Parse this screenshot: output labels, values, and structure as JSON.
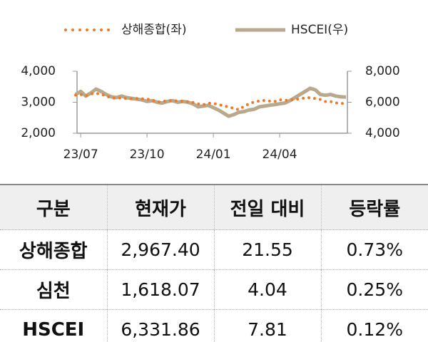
{
  "chart_data": {
    "type": "line",
    "categories": [
      null,
      "23/07",
      null,
      null,
      null,
      null,
      null,
      null,
      null,
      null,
      null,
      null,
      null,
      null,
      "23/10",
      null,
      null,
      null,
      null,
      null,
      null,
      null,
      null,
      null,
      null,
      null,
      null,
      "24/01",
      null,
      null,
      null,
      null,
      null,
      null,
      null,
      null,
      null,
      null,
      null,
      null,
      "24/04",
      null,
      null,
      null,
      null,
      null,
      null,
      null,
      null,
      null,
      null,
      null,
      null,
      null
    ],
    "series": [
      {
        "name": "상해종합(좌)",
        "color": "#ec7a2a",
        "style": "dotted",
        "axis": "y",
        "values": [
          3230,
          3250,
          3200,
          3270,
          3290,
          3260,
          3200,
          3140,
          3130,
          3140,
          3120,
          3110,
          3120,
          3110,
          3100,
          3080,
          3000,
          3020,
          3050,
          3060,
          3040,
          3030,
          3020,
          2990,
          2950,
          2920,
          2970,
          2960,
          2930,
          2880,
          2850,
          2800,
          2760,
          2870,
          2950,
          3010,
          3040,
          3060,
          3040,
          3020,
          3080,
          3060,
          3070,
          3100,
          3110,
          3140,
          3150,
          3120,
          3090,
          3020,
          3020,
          2980,
          2960,
          2967.4
        ]
      },
      {
        "name": "HSCEI(우)",
        "color": "#b9a98c",
        "style": "solid",
        "axis": "y2",
        "values": [
          6500,
          6700,
          6400,
          6600,
          6850,
          6700,
          6500,
          6350,
          6300,
          6400,
          6300,
          6250,
          6200,
          6150,
          6050,
          6100,
          6000,
          5950,
          6050,
          6100,
          6000,
          6050,
          6000,
          5900,
          5700,
          5750,
          5800,
          5650,
          5500,
          5300,
          5100,
          5200,
          5350,
          5400,
          5500,
          5550,
          5700,
          5750,
          5800,
          5850,
          5900,
          5950,
          6100,
          6300,
          6500,
          6700,
          6900,
          6800,
          6500,
          6450,
          6500,
          6400,
          6350,
          6331.86
        ]
      }
    ],
    "ylim": [
      2000,
      4000
    ],
    "yticks": [
      {
        "value": 2000,
        "label": "2,000"
      },
      {
        "value": 3000,
        "label": "3,000"
      },
      {
        "value": 4000,
        "label": "4,000"
      }
    ],
    "y2lim": [
      4000,
      8000
    ],
    "y2ticks": [
      {
        "value": 4000,
        "label": "4,000"
      },
      {
        "value": 6000,
        "label": "6,000"
      },
      {
        "value": 8000,
        "label": "8,000"
      }
    ],
    "legend": "top",
    "grid": false
  },
  "table": {
    "header": [
      "구분",
      "현재가",
      "전일 대비",
      "등락률"
    ],
    "rows": [
      [
        "상해종합",
        "2,967.40",
        "21.55",
        "0.73%"
      ],
      [
        "심천",
        "1,618.07",
        "4.04",
        "0.25%"
      ],
      [
        "HSCEI",
        "6,331.86",
        "7.81",
        "0.12%"
      ]
    ]
  }
}
